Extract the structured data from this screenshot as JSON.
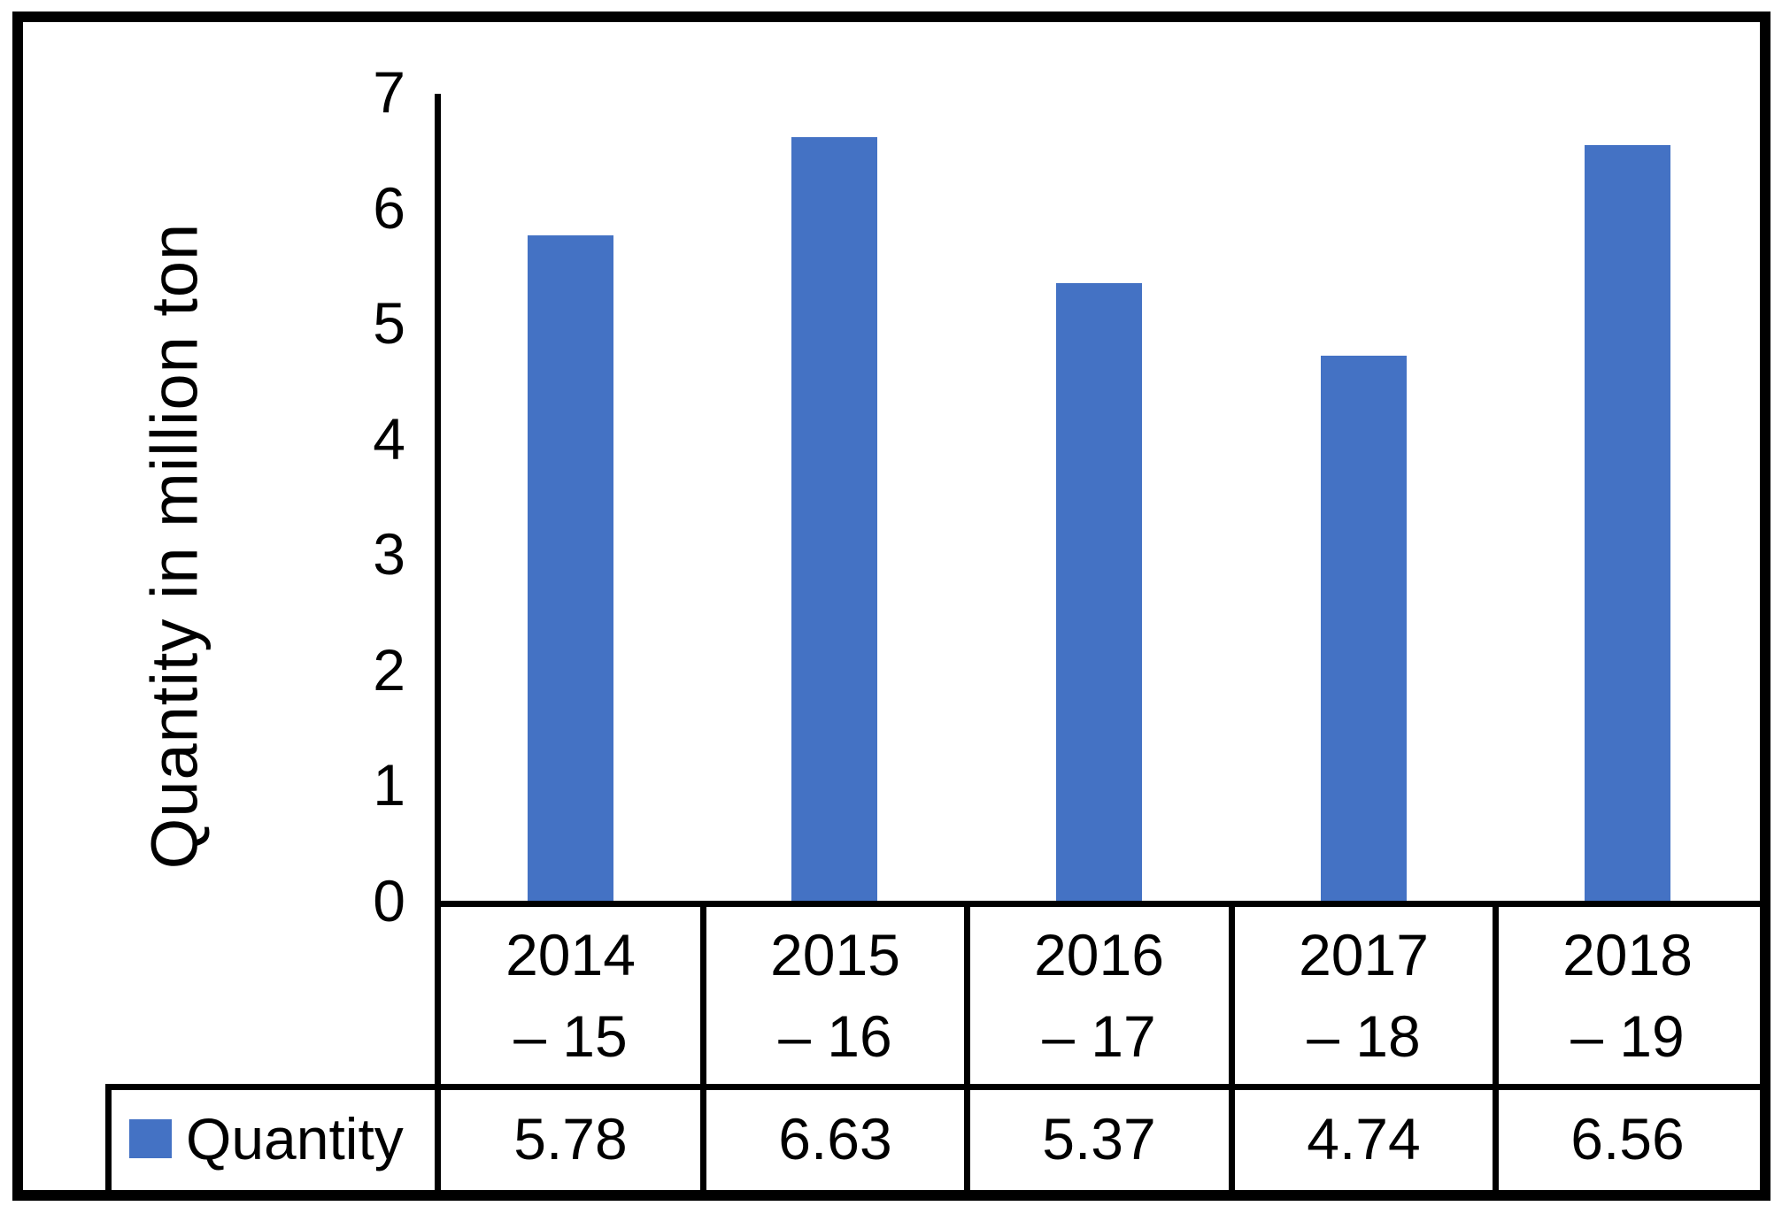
{
  "chart_data": {
    "type": "bar",
    "title": "",
    "xlabel": "",
    "ylabel": "Quantity in million ton",
    "categories": [
      "2014 – 15",
      "2015 – 16",
      "2016 – 17",
      "2017 – 18",
      "2018 – 19"
    ],
    "categories_display": [
      {
        "top": "2014",
        "bottom": "– 15"
      },
      {
        "top": "2015",
        "bottom": "– 16"
      },
      {
        "top": "2016",
        "bottom": "– 17"
      },
      {
        "top": "2017",
        "bottom": "– 18"
      },
      {
        "top": "2018",
        "bottom": "– 19"
      }
    ],
    "series": [
      {
        "name": "Quantity",
        "values": [
          5.78,
          6.63,
          5.37,
          4.74,
          6.56
        ]
      }
    ],
    "values_display": [
      "5.78",
      "6.63",
      "5.37",
      "4.74",
      "6.56"
    ],
    "ylim": [
      0,
      7
    ],
    "yticks": [
      7,
      6,
      5,
      4,
      3,
      2,
      1,
      0
    ],
    "grid": false,
    "legend_position": "bottom-left-table",
    "bar_color": "#4472C4"
  },
  "legend": {
    "label": "Quantity",
    "swatch_color": "#4472C4"
  }
}
